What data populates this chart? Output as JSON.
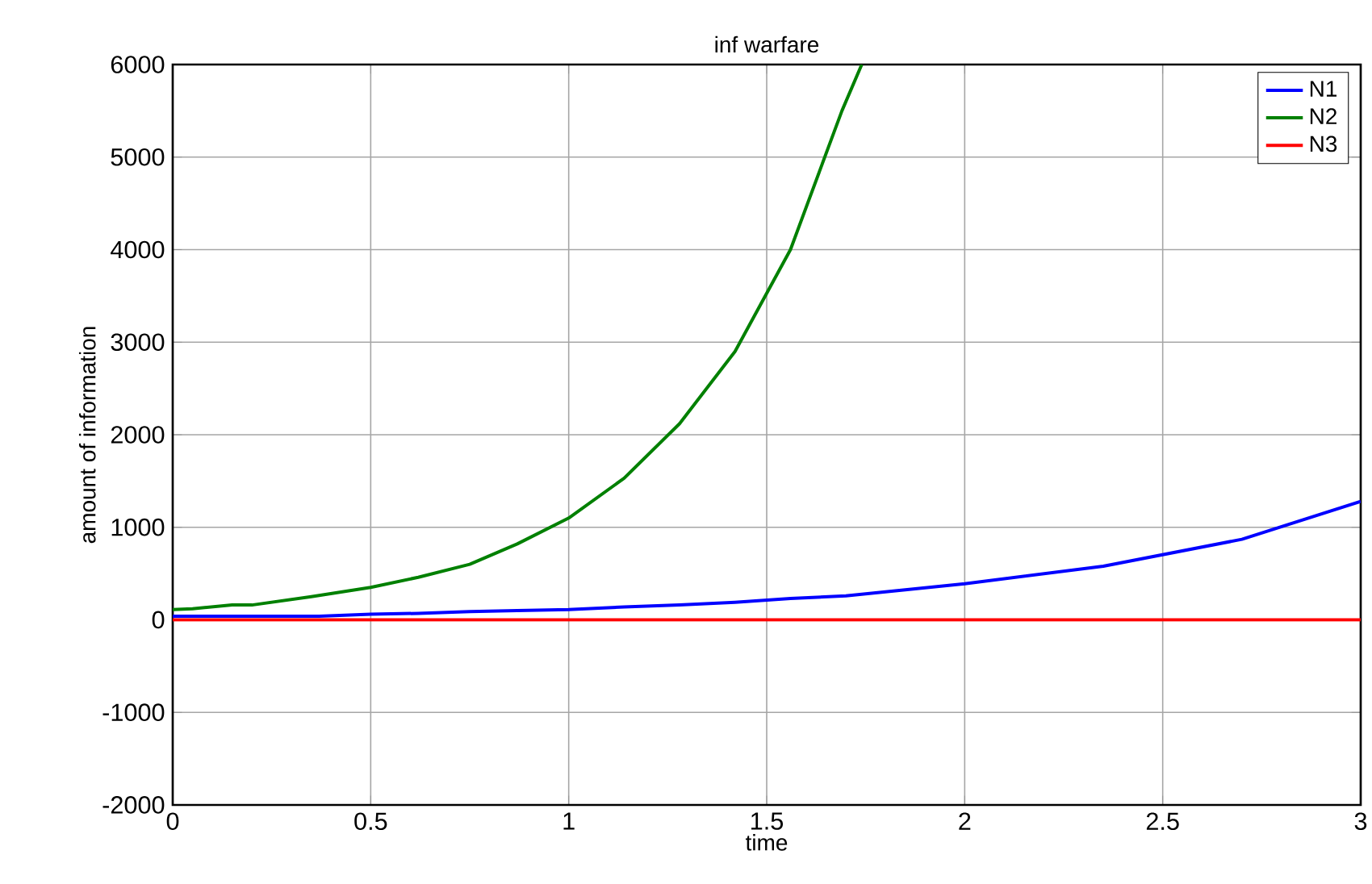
{
  "chart_data": {
    "type": "line",
    "title": "inf warfare",
    "xlabel": "time",
    "ylabel": "amount of information",
    "xlim": [
      0,
      3
    ],
    "ylim": [
      -2000,
      6000
    ],
    "xticks": [
      0,
      0.5,
      1,
      1.5,
      2,
      2.5,
      3
    ],
    "yticks": [
      -2000,
      -1000,
      0,
      1000,
      2000,
      3000,
      4000,
      5000,
      6000
    ],
    "grid": true,
    "legend": "top right",
    "marker": "none",
    "line_style": "solid",
    "series": [
      {
        "name": "N1",
        "color": "#0000ff",
        "x": [
          0,
          0.37,
          0.5,
          0.62,
          0.75,
          0.87,
          1,
          1.14,
          1.28,
          1.42,
          1.56,
          1.7,
          2,
          2.35,
          2.7,
          3
        ],
        "values": [
          40,
          40,
          60,
          70,
          90,
          100,
          110,
          140,
          160,
          190,
          230,
          260,
          390,
          580,
          870,
          1280
        ]
      },
      {
        "name": "N2",
        "color": "#008000",
        "x": [
          0,
          0.05,
          0.15,
          0.2,
          0.35,
          0.5,
          0.62,
          0.75,
          0.87,
          1,
          1.14,
          1.28,
          1.42,
          1.56,
          1.69,
          1.74
        ],
        "values": [
          110,
          120,
          160,
          160,
          250,
          350,
          460,
          600,
          820,
          1100,
          1530,
          2120,
          2900,
          4000,
          5500,
          6000
        ]
      },
      {
        "name": "N3",
        "color": "#ff0000",
        "x": [
          0,
          3
        ],
        "values": [
          0,
          0
        ]
      }
    ]
  }
}
